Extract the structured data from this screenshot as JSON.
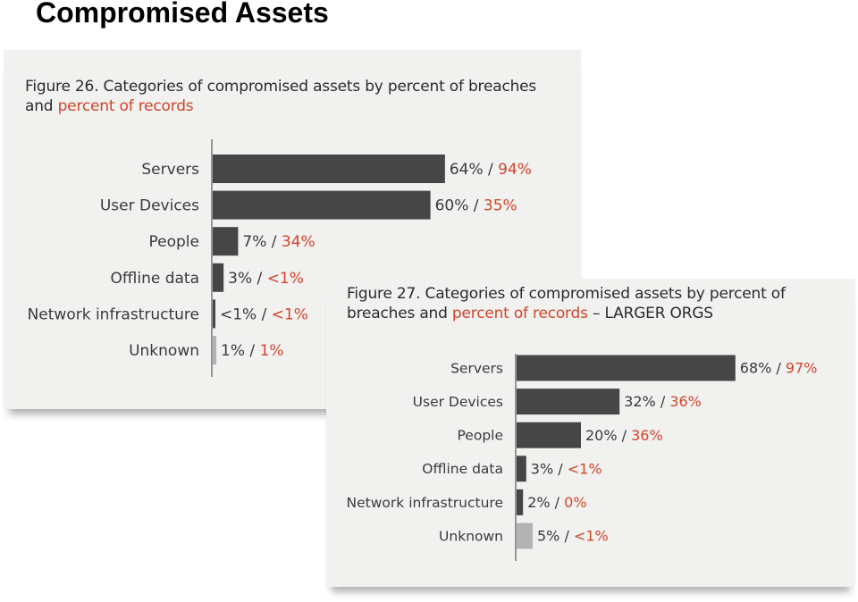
{
  "page": {
    "title": "Compromised Assets"
  },
  "colors": {
    "bar": "#464646",
    "bar_unknown": "#b3b3b3",
    "records": "#d2452a",
    "axis": "#3a3a3a"
  },
  "chart_data": [
    {
      "type": "bar",
      "orientation": "horizontal",
      "title_prefix": "Figure 26. Categories of compromised assets by percent of breaches and ",
      "title_highlight": "percent of records",
      "title_suffix": "",
      "categories": [
        "Servers",
        "User Devices",
        "People",
        "Offline data",
        "Network infrastructure",
        "Unknown"
      ],
      "series": [
        {
          "name": "percent of breaches",
          "values": [
            64,
            60,
            7,
            3,
            0.5,
            1
          ]
        },
        {
          "name": "percent of records",
          "values": [
            94,
            35,
            34,
            0.5,
            0.5,
            1
          ]
        }
      ],
      "breaches_labels": [
        "64%",
        "60%",
        "7%",
        "3%",
        "<1%",
        "1%"
      ],
      "records_labels": [
        "94%",
        "35%",
        "34%",
        "<1%",
        "<1%",
        "1%"
      ],
      "xlim": [
        0,
        100
      ]
    },
    {
      "type": "bar",
      "orientation": "horizontal",
      "title_prefix": "Figure 27. Categories of compromised assets by percent of breaches and ",
      "title_highlight": "percent of records",
      "title_suffix": " – LARGER ORGS",
      "categories": [
        "Servers",
        "User Devices",
        "People",
        "Offline data",
        "Network infrastructure",
        "Unknown"
      ],
      "series": [
        {
          "name": "percent of breaches",
          "values": [
            68,
            32,
            20,
            3,
            2,
            5
          ]
        },
        {
          "name": "percent of records",
          "values": [
            97,
            36,
            36,
            0.5,
            0,
            0.5
          ]
        }
      ],
      "breaches_labels": [
        "68%",
        "32%",
        "20%",
        "3%",
        "2%",
        "5%"
      ],
      "records_labels": [
        "97%",
        "36%",
        "36%",
        "<1%",
        "0%",
        "<1%"
      ],
      "xlim": [
        0,
        100
      ]
    }
  ]
}
